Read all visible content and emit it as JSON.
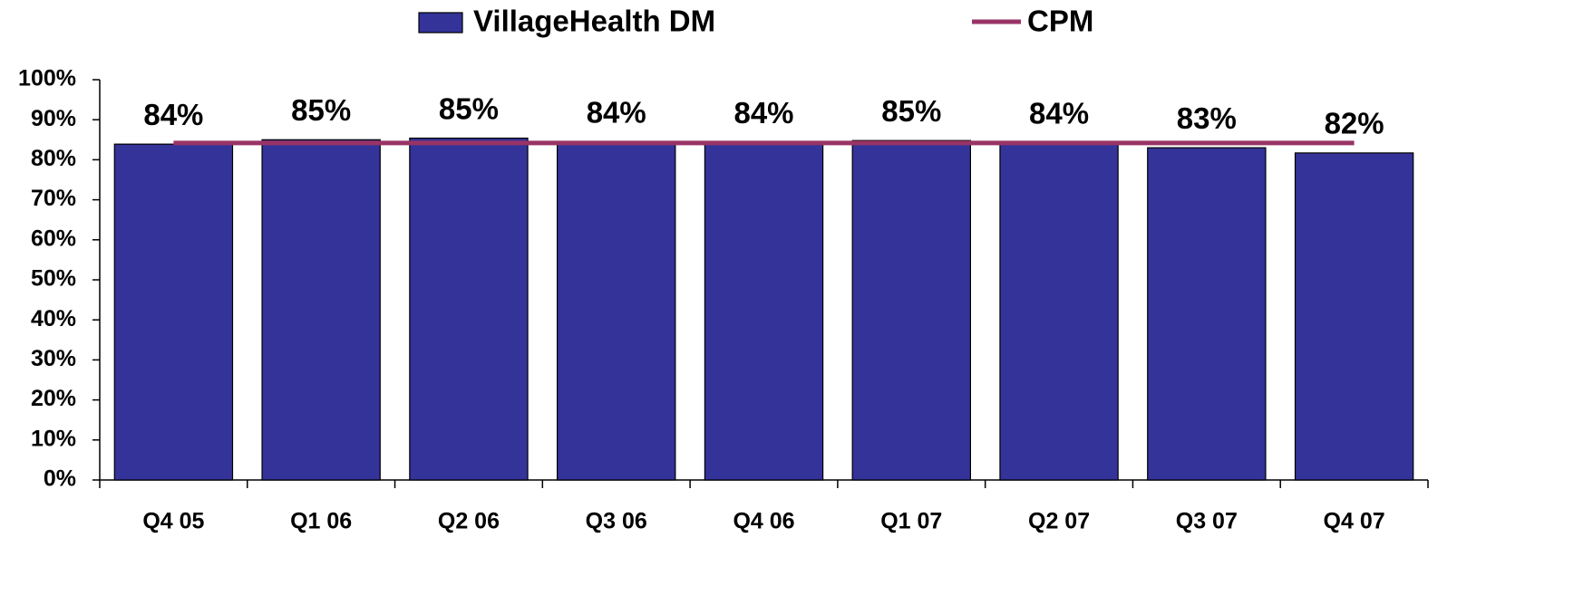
{
  "chart_data": {
    "type": "bar",
    "categories": [
      "Q4 05",
      "Q1 06",
      "Q2 06",
      "Q3 06",
      "Q4 06",
      "Q1 07",
      "Q2 07",
      "Q3 07",
      "Q4 07"
    ],
    "series": [
      {
        "name": "VillageHealth DM",
        "type": "bar",
        "color": "#333399",
        "values": [
          83.9,
          85.0,
          85.4,
          84.4,
          84.3,
          84.8,
          84.2,
          83.0,
          81.7
        ],
        "value_labels": [
          "84%",
          "85%",
          "85%",
          "84%",
          "84%",
          "85%",
          "84%",
          "83%",
          "82%"
        ]
      },
      {
        "name": "CPM",
        "type": "line",
        "color": "#993366",
        "values": [
          84.2,
          84.2,
          84.2,
          84.2,
          84.2,
          84.2,
          84.2,
          84.2,
          84.2
        ]
      }
    ],
    "ylim": [
      0,
      100
    ],
    "yticks": [
      {
        "value": 0,
        "label": "0%"
      },
      {
        "value": 10,
        "label": "10%"
      },
      {
        "value": 20,
        "label": "20%"
      },
      {
        "value": 30,
        "label": "30%"
      },
      {
        "value": 40,
        "label": "40%"
      },
      {
        "value": 50,
        "label": "50%"
      },
      {
        "value": 60,
        "label": "60%"
      },
      {
        "value": 70,
        "label": "70%"
      },
      {
        "value": 80,
        "label": "80%"
      },
      {
        "value": 90,
        "label": "90%"
      },
      {
        "value": 100,
        "label": "100%"
      }
    ],
    "grid": false,
    "legend": "top"
  }
}
